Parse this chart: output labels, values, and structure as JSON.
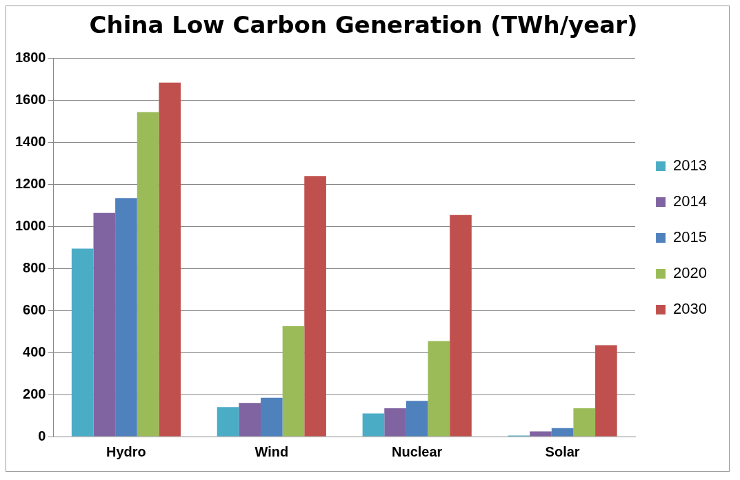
{
  "chart_data": {
    "type": "bar",
    "title": "China Low Carbon Generation (TWh/year)",
    "categories": [
      "Hydro",
      "Wind",
      "Nuclear",
      "Solar"
    ],
    "series": [
      {
        "name": "2013",
        "color": "#4bacc6",
        "values": [
          895,
          140,
          110,
          5
        ]
      },
      {
        "name": "2014",
        "color": "#8064a2",
        "values": [
          1065,
          160,
          135,
          25
        ]
      },
      {
        "name": "2015",
        "color": "#4f81bd",
        "values": [
          1135,
          185,
          170,
          40
        ]
      },
      {
        "name": "2020",
        "color": "#9bbb59",
        "values": [
          1545,
          525,
          455,
          135
        ]
      },
      {
        "name": "2030",
        "color": "#c0504d",
        "values": [
          1685,
          1240,
          1055,
          435
        ]
      }
    ],
    "ylim": [
      0,
      1800
    ],
    "yticks": [
      0,
      200,
      400,
      600,
      800,
      1000,
      1200,
      1400,
      1600,
      1800
    ],
    "grid": "y",
    "legend": "right"
  }
}
